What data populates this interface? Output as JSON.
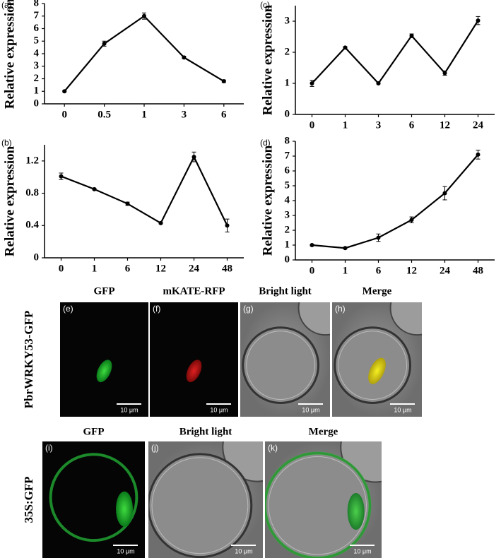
{
  "chart_data": [
    {
      "type": "line",
      "label": "(a)",
      "ylabel": "Relative expression",
      "categories": [
        "0",
        "0.5",
        "1",
        "3",
        "6"
      ],
      "values": [
        1.0,
        4.8,
        7.0,
        3.7,
        1.8
      ],
      "errors": [
        0.05,
        0.2,
        0.25,
        0.1,
        0.1
      ],
      "ylim": [
        0,
        8
      ],
      "yticks": [
        0,
        1,
        2,
        3,
        4,
        5,
        6,
        7,
        8
      ],
      "color": "#000000"
    },
    {
      "type": "line",
      "label": "(b)",
      "ylabel": "Relative expression",
      "categories": [
        "0",
        "1",
        "6",
        "12",
        "24",
        "48"
      ],
      "values": [
        1.01,
        0.85,
        0.67,
        0.43,
        1.25,
        0.4
      ],
      "errors": [
        0.04,
        0.01,
        0.02,
        0.01,
        0.06,
        0.08
      ],
      "ylim": [
        0,
        1.4
      ],
      "yticks": [
        0,
        0.4,
        0.8,
        1.2
      ],
      "color": "#000000"
    },
    {
      "type": "line",
      "label": "(c)",
      "ylabel": "Relative expression",
      "categories": [
        "0",
        "1",
        "3",
        "6",
        "12",
        "24"
      ],
      "values": [
        1.0,
        2.15,
        1.0,
        2.53,
        1.33,
        3.02
      ],
      "errors": [
        0.1,
        0.03,
        0.02,
        0.06,
        0.07,
        0.13
      ],
      "ylim": [
        0,
        3.5
      ],
      "yticks": [
        0,
        1,
        2,
        3
      ],
      "color": "#000000"
    },
    {
      "type": "line",
      "label": "(d)",
      "ylabel": "Relative expression",
      "categories": [
        "0",
        "1",
        "6",
        "12",
        "24",
        "48"
      ],
      "values": [
        1.0,
        0.8,
        1.5,
        2.7,
        4.5,
        7.1
      ],
      "errors": [
        0.05,
        0.05,
        0.25,
        0.2,
        0.45,
        0.3
      ],
      "ylim": [
        0,
        8
      ],
      "yticks": [
        0,
        1,
        2,
        3,
        4,
        5,
        6,
        7,
        8
      ],
      "color": "#000000"
    }
  ],
  "panels": {
    "rows": [
      {
        "label": "PbrWRKY53-GFP",
        "images": [
          {
            "tag": "(e)",
            "title": "GFP",
            "scale": "10 μm"
          },
          {
            "tag": "(f)",
            "title": "mKATE-RFP",
            "scale": "10 μm"
          },
          {
            "tag": "(g)",
            "title": "Bright light",
            "scale": "10 μm"
          },
          {
            "tag": "(h)",
            "title": "Merge",
            "scale": "10 μm"
          }
        ]
      },
      {
        "label": "35S:GFP",
        "images": [
          {
            "tag": "(i)",
            "title": "GFP",
            "scale": "10 μm"
          },
          {
            "tag": "(j)",
            "title": "Bright light",
            "scale": "10 μm"
          },
          {
            "tag": "(k)",
            "title": "Merge",
            "scale": "10 μm"
          }
        ]
      }
    ]
  }
}
